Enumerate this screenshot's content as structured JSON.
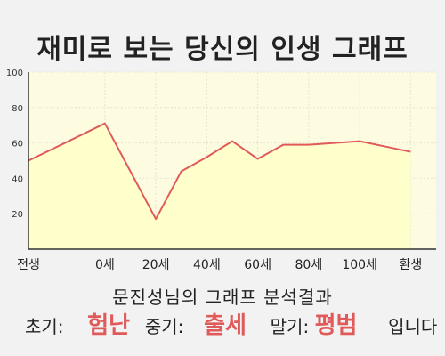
{
  "title": "재미로 보는 당신의 인생 그래프",
  "chart_data": {
    "type": "area",
    "x_ticks": [
      "전생",
      "0세",
      "20세",
      "40세",
      "60세",
      "80세",
      "100세",
      "환생"
    ],
    "ylim": [
      0,
      100
    ],
    "y_ticks": [
      20,
      40,
      60,
      80,
      100
    ],
    "x": [
      -15,
      0,
      10,
      15,
      20,
      25,
      30,
      35,
      40,
      45,
      50,
      55,
      60
    ],
    "values": [
      50,
      71,
      17,
      44,
      52,
      61,
      51,
      59,
      59,
      60,
      61,
      58,
      55
    ],
    "grid": true,
    "colors": {
      "line": "#e05a5a",
      "fill": "#ffffcc",
      "plot_bg": "#fdfbe0",
      "grid": "#e6e6d0"
    }
  },
  "result": {
    "heading": "문진성님의 그래프 분석결과",
    "early_label": "초기:",
    "early_value": "험난",
    "middle_label": "중기:",
    "middle_value": "출세",
    "late_label": "말기:",
    "late_value": "평범",
    "ending": "입니다"
  }
}
